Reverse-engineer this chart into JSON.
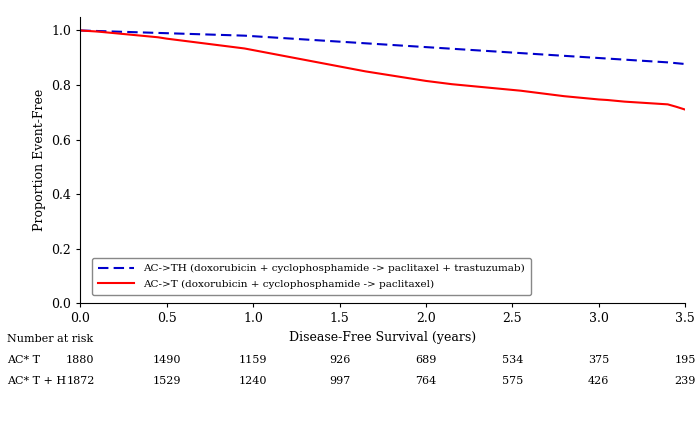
{
  "title": "",
  "xlabel": "Disease-Free Survival (years)",
  "ylabel": "Proportion Event-Free",
  "xlim": [
    0,
    3.5
  ],
  "ylim": [
    0.0,
    1.05
  ],
  "yticks": [
    0.0,
    0.2,
    0.4,
    0.6,
    0.8,
    1.0
  ],
  "xticks": [
    0.0,
    0.5,
    1.0,
    1.5,
    2.0,
    2.5,
    3.0,
    3.5
  ],
  "ac_t_x": [
    0.0,
    0.05,
    0.1,
    0.15,
    0.2,
    0.25,
    0.3,
    0.35,
    0.4,
    0.45,
    0.5,
    0.55,
    0.6,
    0.65,
    0.7,
    0.75,
    0.8,
    0.85,
    0.9,
    0.95,
    1.0,
    1.05,
    1.1,
    1.15,
    1.2,
    1.25,
    1.3,
    1.35,
    1.4,
    1.45,
    1.5,
    1.55,
    1.6,
    1.65,
    1.7,
    1.75,
    1.8,
    1.85,
    1.9,
    1.95,
    2.0,
    2.05,
    2.1,
    2.15,
    2.2,
    2.25,
    2.3,
    2.35,
    2.4,
    2.45,
    2.5,
    2.55,
    2.6,
    2.65,
    2.7,
    2.75,
    2.8,
    2.85,
    2.9,
    2.95,
    3.0,
    3.05,
    3.1,
    3.15,
    3.2,
    3.25,
    3.3,
    3.35,
    3.4,
    3.45,
    3.5
  ],
  "ac_t_y": [
    1.0,
    0.998,
    0.996,
    0.993,
    0.99,
    0.987,
    0.984,
    0.981,
    0.978,
    0.975,
    0.97,
    0.966,
    0.962,
    0.958,
    0.954,
    0.95,
    0.946,
    0.942,
    0.938,
    0.934,
    0.928,
    0.922,
    0.916,
    0.91,
    0.904,
    0.898,
    0.892,
    0.886,
    0.88,
    0.874,
    0.868,
    0.862,
    0.856,
    0.85,
    0.845,
    0.84,
    0.835,
    0.83,
    0.825,
    0.82,
    0.815,
    0.811,
    0.807,
    0.803,
    0.8,
    0.797,
    0.794,
    0.791,
    0.788,
    0.785,
    0.782,
    0.779,
    0.775,
    0.771,
    0.767,
    0.763,
    0.759,
    0.756,
    0.753,
    0.75,
    0.747,
    0.745,
    0.742,
    0.739,
    0.737,
    0.735,
    0.733,
    0.731,
    0.729,
    0.72,
    0.71
  ],
  "ac_th_x": [
    0.0,
    0.05,
    0.1,
    0.15,
    0.2,
    0.25,
    0.3,
    0.35,
    0.4,
    0.45,
    0.5,
    0.55,
    0.6,
    0.65,
    0.7,
    0.75,
    0.8,
    0.85,
    0.9,
    0.95,
    1.0,
    1.05,
    1.1,
    1.15,
    1.2,
    1.25,
    1.3,
    1.35,
    1.4,
    1.45,
    1.5,
    1.55,
    1.6,
    1.65,
    1.7,
    1.75,
    1.8,
    1.85,
    1.9,
    1.95,
    2.0,
    2.05,
    2.1,
    2.15,
    2.2,
    2.25,
    2.3,
    2.35,
    2.4,
    2.45,
    2.5,
    2.55,
    2.6,
    2.65,
    2.7,
    2.75,
    2.8,
    2.85,
    2.9,
    2.95,
    3.0,
    3.05,
    3.1,
    3.15,
    3.2,
    3.25,
    3.3,
    3.35,
    3.4,
    3.45,
    3.5
  ],
  "ac_th_y": [
    1.0,
    0.999,
    0.998,
    0.997,
    0.996,
    0.995,
    0.994,
    0.993,
    0.992,
    0.991,
    0.99,
    0.989,
    0.988,
    0.987,
    0.986,
    0.985,
    0.984,
    0.983,
    0.982,
    0.981,
    0.979,
    0.977,
    0.975,
    0.973,
    0.971,
    0.969,
    0.967,
    0.965,
    0.963,
    0.961,
    0.959,
    0.957,
    0.955,
    0.953,
    0.951,
    0.949,
    0.947,
    0.945,
    0.943,
    0.941,
    0.939,
    0.937,
    0.935,
    0.933,
    0.931,
    0.929,
    0.927,
    0.925,
    0.923,
    0.921,
    0.919,
    0.917,
    0.915,
    0.913,
    0.911,
    0.909,
    0.907,
    0.905,
    0.903,
    0.901,
    0.899,
    0.897,
    0.895,
    0.893,
    0.891,
    0.889,
    0.887,
    0.885,
    0.883,
    0.88,
    0.877
  ],
  "legend_th": "AC->TH (doxorubicin + cyclophosphamide -> paclitaxel + trastuzumab)",
  "legend_t": "AC->T (doxorubicin + cyclophosphamide -> paclitaxel)",
  "at_risk_label": "Number at risk",
  "at_risk_t_label": "AC* T",
  "at_risk_th_label": "AC* T + H",
  "at_risk_t": [
    1880,
    1490,
    1159,
    926,
    689,
    534,
    375,
    195
  ],
  "at_risk_th": [
    1872,
    1529,
    1240,
    997,
    764,
    575,
    426,
    239
  ],
  "at_risk_x": [
    0.0,
    0.5,
    1.0,
    1.5,
    2.0,
    2.5,
    3.0,
    3.5
  ],
  "line_color_t": "#FF0000",
  "line_color_th": "#0000CC",
  "bg_color": "#FFFFFF",
  "plot_bg_color": "#FFFFFF",
  "font_size": 9,
  "axis_font_size": 9
}
